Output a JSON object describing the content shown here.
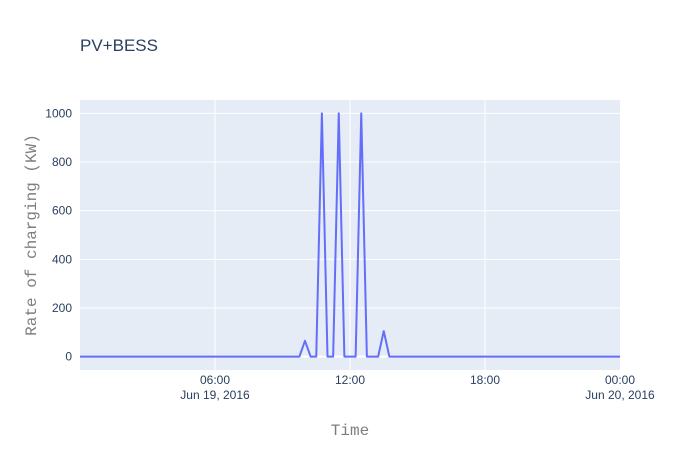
{
  "chart_data": {
    "type": "line",
    "title": "PV+BESS",
    "xlabel": "Time",
    "ylabel": "Rate of charging (KW)",
    "x_range": [
      "2016-06-19 00:00",
      "2016-06-20 00:00"
    ],
    "ylim": [
      -55,
      1055
    ],
    "y_ticks": [
      0,
      200,
      400,
      600,
      800,
      1000
    ],
    "x_ticks": [
      {
        "time": "2016-06-19 06:00",
        "label": "06:00",
        "sublabel": "Jun 19, 2016"
      },
      {
        "time": "2016-06-19 12:00",
        "label": "12:00",
        "sublabel": ""
      },
      {
        "time": "2016-06-19 18:00",
        "label": "18:00",
        "sublabel": ""
      },
      {
        "time": "2016-06-20 00:00",
        "label": "00:00",
        "sublabel": "Jun 20, 2016"
      }
    ],
    "grid": true,
    "legend": "none",
    "colors": {
      "line": "#636efa",
      "plot_bg": "#e5ecf6",
      "grid": "#ffffff",
      "text": "#2a3f5f"
    },
    "series": [
      {
        "x": [
          "2016-06-19 00:00",
          "2016-06-19 09:45",
          "2016-06-19 10:00",
          "2016-06-19 10:15",
          "2016-06-19 10:30",
          "2016-06-19 10:45",
          "2016-06-19 11:00",
          "2016-06-19 11:15",
          "2016-06-19 11:30",
          "2016-06-19 11:45",
          "2016-06-19 12:00",
          "2016-06-19 12:15",
          "2016-06-19 12:30",
          "2016-06-19 12:45",
          "2016-06-19 13:00",
          "2016-06-19 13:15",
          "2016-06-19 13:30",
          "2016-06-19 13:45",
          "2016-06-19 14:00",
          "2016-06-20 00:00"
        ],
        "y": [
          0,
          0,
          65,
          0,
          0,
          1000,
          0,
          0,
          1000,
          0,
          0,
          0,
          1000,
          0,
          0,
          0,
          105,
          0,
          0,
          0
        ]
      }
    ]
  }
}
